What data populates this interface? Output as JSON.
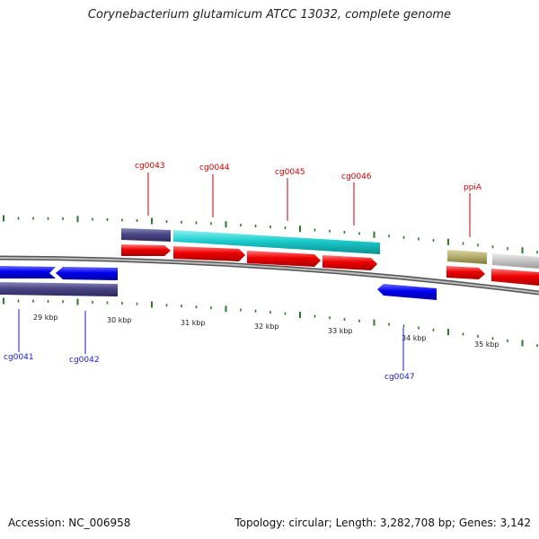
{
  "title": "Corynebacterium glutamicum ATCC 13032, complete genome",
  "accession": "Accession: NC_006958",
  "summary": "Topology: circular; Length: 3,282,708 bp; Genes: 3,142",
  "colors": {
    "forward_label": "#cc0000",
    "reverse_label": "#1a1acc",
    "cds_forward": "#ee0000",
    "cds_reverse": "#0000ee",
    "tick": "#2a7a2a"
  },
  "kbp_labels": [
    "29 kbp",
    "30 kbp",
    "31 kbp",
    "32 kbp",
    "33 kbp",
    "34 kbp",
    "35 kbp"
  ],
  "genes_forward": [
    "cg0043",
    "cg0044",
    "cg0045",
    "cg0046",
    "ppiA"
  ],
  "genes_reverse": [
    "cg0041",
    "cg0042",
    "cg0047"
  ]
}
